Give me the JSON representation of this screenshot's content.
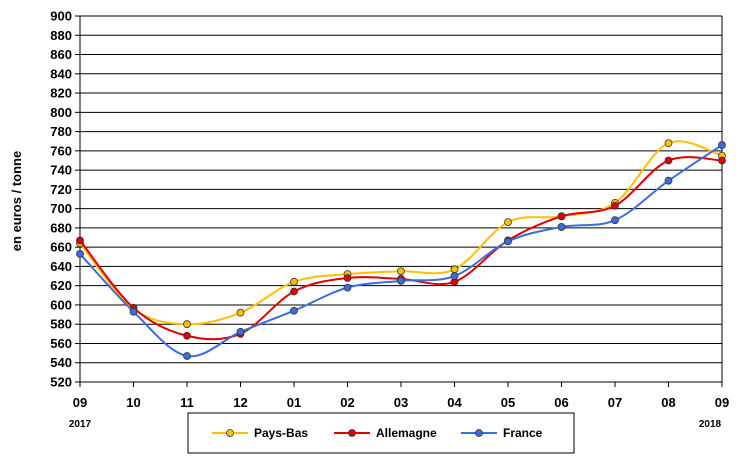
{
  "chart_data": {
    "type": "line",
    "ylabel": "en euros / tonne",
    "ylim": [
      520,
      900
    ],
    "yticks": [
      520,
      540,
      560,
      580,
      600,
      620,
      640,
      660,
      680,
      700,
      720,
      740,
      760,
      780,
      800,
      820,
      840,
      860,
      880,
      900
    ],
    "categories": [
      "09",
      "10",
      "11",
      "12",
      "01",
      "02",
      "03",
      "04",
      "05",
      "06",
      "07",
      "08",
      "09"
    ],
    "year_labels": {
      "start": "2017",
      "end": "2018"
    },
    "grid": "horizontal",
    "legend_position": "bottom",
    "series": [
      {
        "name": "Pays-Bas",
        "color": "#FFC000",
        "marker_color": "#FFC000",
        "values": [
          664,
          596,
          580,
          592,
          624,
          632,
          635,
          637,
          686,
          692,
          706,
          768,
          755
        ]
      },
      {
        "name": "Allemagne",
        "color": "#E00000",
        "marker_color": "#E00000",
        "values": [
          667,
          597,
          568,
          570,
          614,
          628,
          627,
          624,
          667,
          692,
          703,
          750,
          750
        ]
      },
      {
        "name": "France",
        "color": "#3A6DDB",
        "marker_color": "#3A6DDB",
        "values": [
          653,
          593,
          547,
          572,
          594,
          618,
          625,
          630,
          666,
          681,
          688,
          729,
          766
        ]
      }
    ]
  }
}
